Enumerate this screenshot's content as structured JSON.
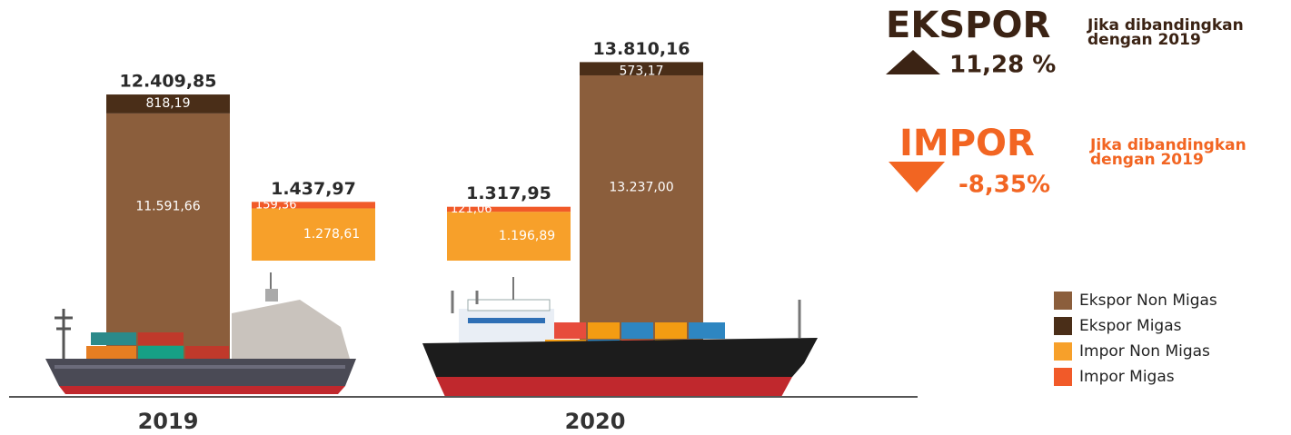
{
  "chart_data": {
    "type": "stacked-bar",
    "categories": [
      "2019",
      "2020"
    ],
    "series": [
      {
        "name": "Ekspor Non Migas",
        "color": "#8b5e3c",
        "stack": "ekspor",
        "values": [
          11591.66,
          13237.0
        ],
        "value_labels": [
          "11.591,66",
          "13.237,00"
        ]
      },
      {
        "name": "Ekspor Migas",
        "color": "#4a2e18",
        "stack": "ekspor",
        "values": [
          818.19,
          573.17
        ],
        "value_labels": [
          "818,19",
          "573,17"
        ]
      },
      {
        "name": "Impor Non Migas",
        "color": "#f7a02a",
        "stack": "impor",
        "values": [
          1278.61,
          1196.89
        ],
        "value_labels": [
          "1.278,61",
          "1.196,89"
        ]
      },
      {
        "name": "Impor Migas",
        "color": "#f15a29",
        "stack": "impor",
        "values": [
          159.36,
          121.06
        ],
        "value_labels": [
          "159,36",
          "121,06"
        ]
      }
    ],
    "totals": {
      "ekspor": {
        "values": [
          12409.85,
          13810.16
        ],
        "value_labels": [
          "12.409,85",
          "13.810,16"
        ]
      },
      "impor": {
        "values": [
          1437.97,
          1317.95
        ],
        "value_labels": [
          "1.437,97",
          "1.317,95"
        ]
      }
    },
    "annotations": {
      "ekspor": {
        "title": "EKSPOR",
        "change": 11.28,
        "change_label": "11,28 %",
        "note": "Jika dibandingkan dengan 2019",
        "color": "#3b2314"
      },
      "impor": {
        "title": "IMPOR",
        "change": -8.35,
        "change_label": "-8,35%",
        "note": "Jika dibandingkan dengan 2019",
        "color": "#f26522"
      }
    },
    "legend": "right"
  }
}
